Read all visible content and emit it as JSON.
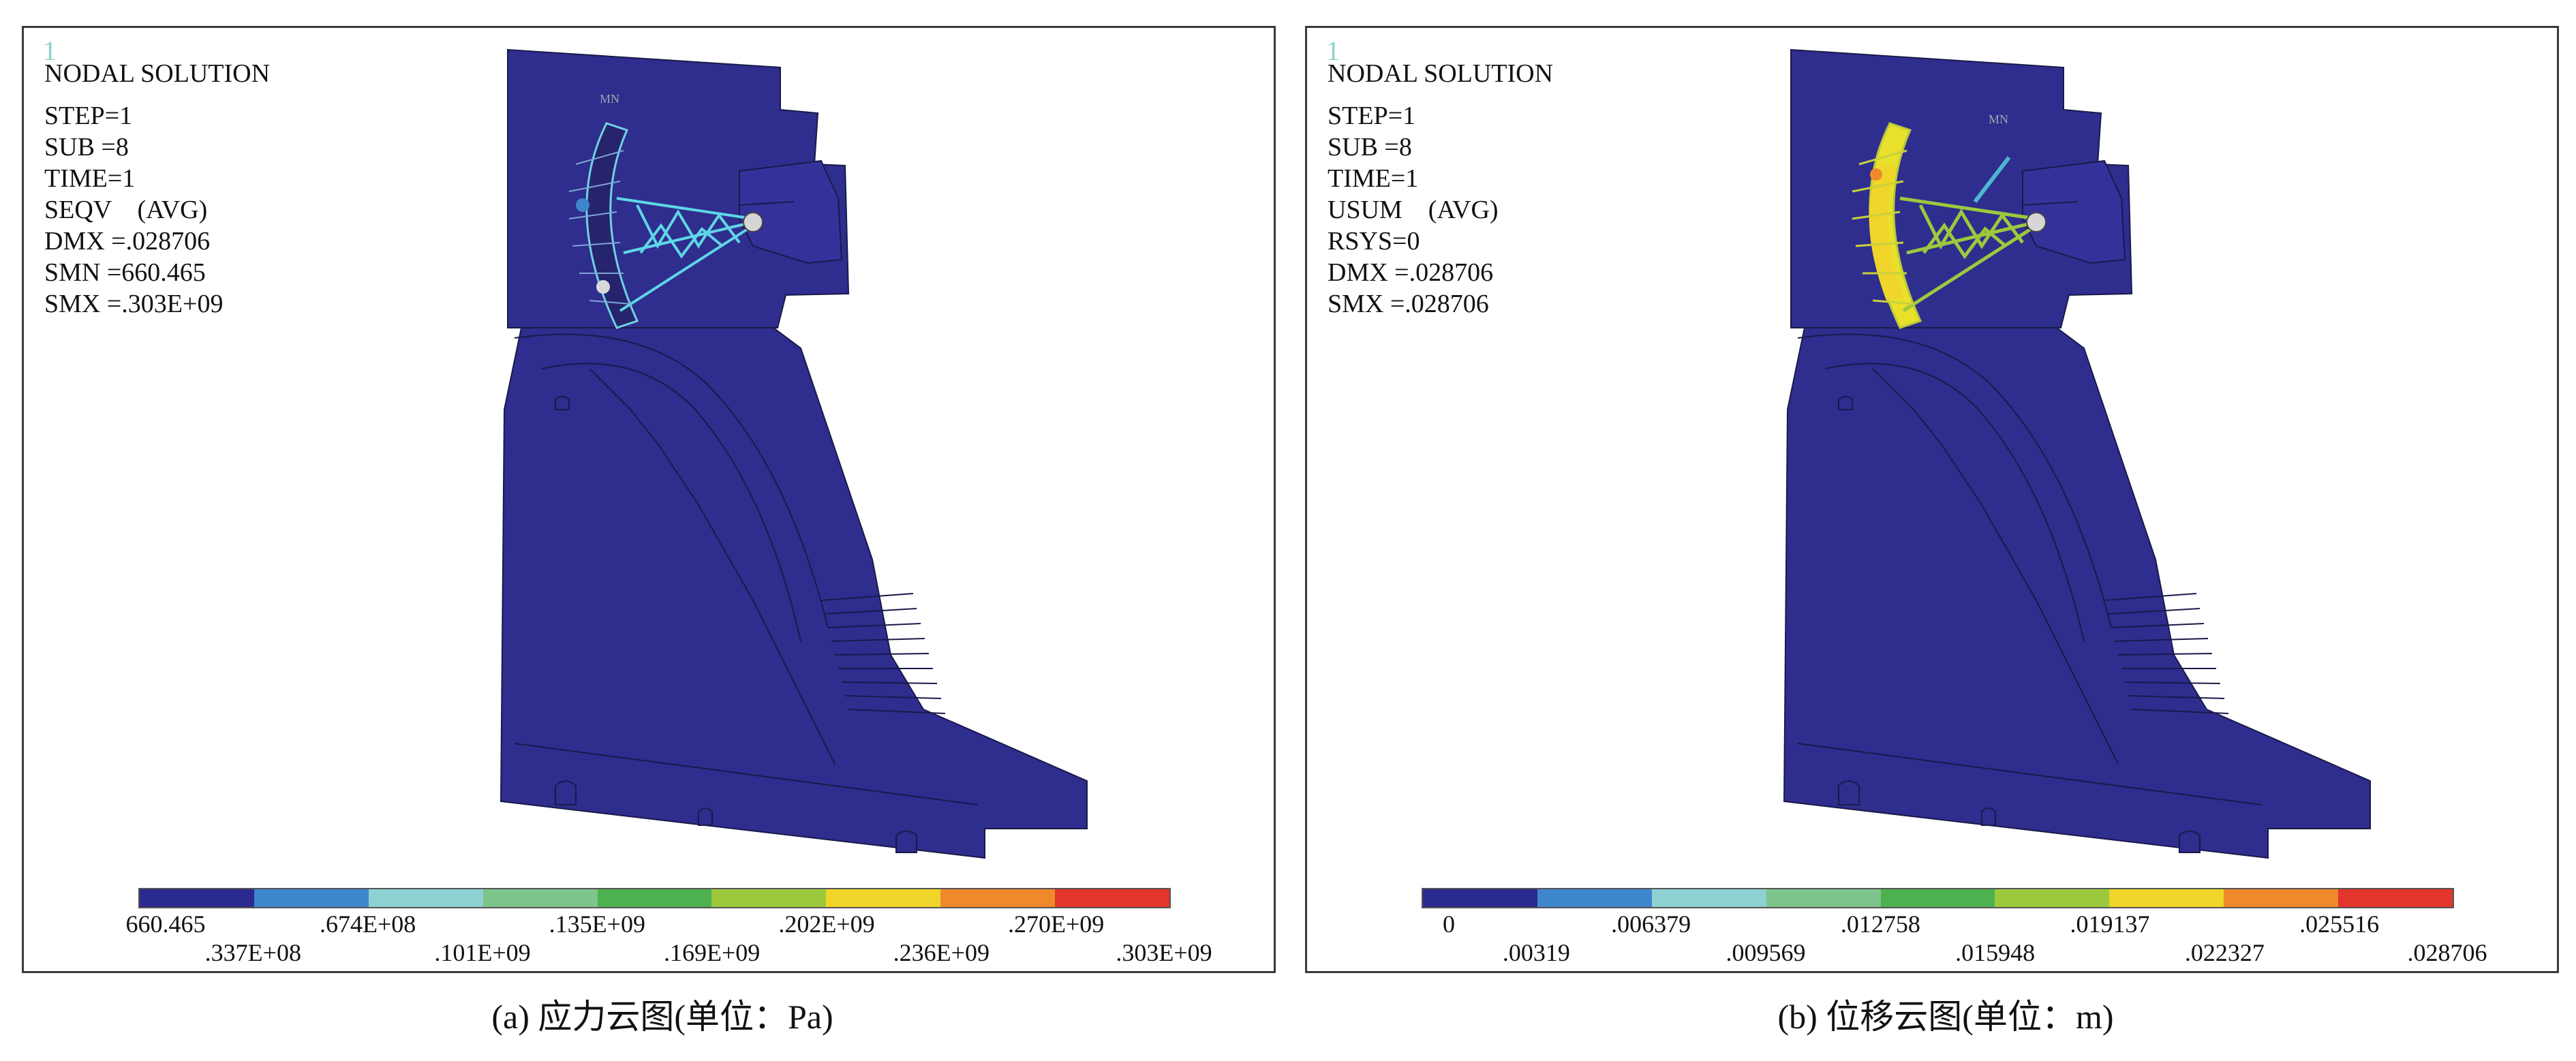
{
  "colors": [
    "#2b2a8f",
    "#3e86cc",
    "#8ed1d3",
    "#7dc48d",
    "#4db150",
    "#9cc93c",
    "#f0d52a",
    "#ef8a2c",
    "#e2352b"
  ],
  "panels": [
    {
      "corner_mark": "1",
      "title": "NODAL SOLUTION",
      "info_lines": [
        "STEP=1",
        "SUB =8",
        "TIME=1",
        "SEQV    (AVG)",
        "DMX =.028706",
        "SMN =660.465",
        "SMX =.303E+09"
      ],
      "labels": [
        "660.465",
        ".337E+08",
        ".674E+08",
        ".101E+09",
        ".135E+09",
        ".169E+09",
        ".202E+09",
        ".236E+09",
        ".270E+09",
        ".303E+09"
      ],
      "model_label": "MN",
      "caption": "(a) 应力云图(单位：Pa)"
    },
    {
      "corner_mark": "1",
      "title": "NODAL SOLUTION",
      "info_lines": [
        "STEP=1",
        "SUB =8",
        "TIME=1",
        "USUM    (AVG)",
        "RSYS=0",
        "DMX =.028706",
        "SMX =.028706"
      ],
      "labels": [
        "0",
        ".00319",
        ".006379",
        ".009569",
        ".012758",
        ".015948",
        ".019137",
        ".022327",
        ".025516",
        ".028706"
      ],
      "model_label": "MN",
      "caption": "(b) 位移云图(单位：m)"
    }
  ]
}
